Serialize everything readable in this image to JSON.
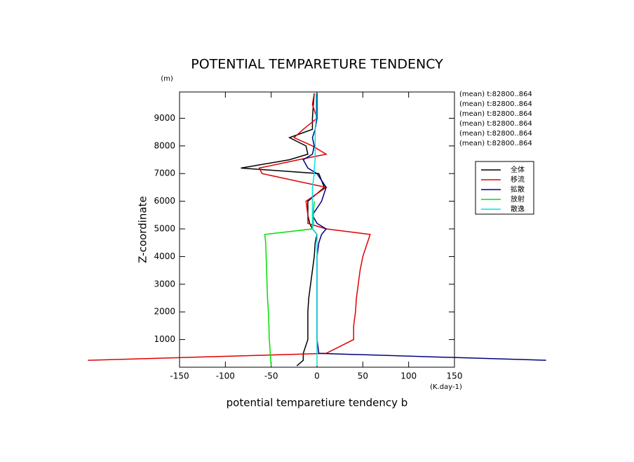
{
  "chart_data": {
    "type": "line",
    "title": "POTENTIAL TEMPARETURE TENDENCY",
    "x_label": "potential temparetiure tendency b",
    "x_unit": "(K.day-1)",
    "y_label": "Z-coordinate",
    "y_unit": "(m)",
    "xlim": [
      -150,
      150
    ],
    "xticks": [
      -150,
      -100,
      -50,
      0,
      50,
      100,
      150
    ],
    "ylim": [
      0,
      9950
    ],
    "yticks": [
      1000,
      2000,
      3000,
      4000,
      5000,
      6000,
      7000,
      8000,
      9000
    ],
    "y": [
      50,
      250,
      500,
      1000,
      1500,
      2000,
      2500,
      3000,
      3500,
      4000,
      4500,
      4800,
      5000,
      5200,
      5500,
      6000,
      6500,
      7000,
      7200,
      7500,
      7700,
      8000,
      8300,
      8600,
      9000,
      9500,
      9900
    ],
    "annotations": [
      "(mean) t:82800..864",
      "(mean) t:82800..864",
      "(mean) t:82800..864",
      "(mean) t:82800..864",
      "(mean) t:82800..864",
      "(mean) t:82800..864"
    ],
    "series": [
      {
        "name": "全体",
        "color": "#000000",
        "values": [
          -22,
          -15,
          -15,
          -10,
          -10,
          -10,
          -9,
          -7,
          -5,
          -3,
          -2,
          0,
          -5,
          -8,
          -10,
          -10,
          8,
          2,
          -83,
          -30,
          -10,
          -12,
          -30,
          -5,
          -5,
          -4,
          -3
        ]
      },
      {
        "name": "移流",
        "color": "#e00000",
        "values": [
          null,
          -250,
          10,
          40,
          40,
          42,
          43,
          45,
          47,
          50,
          55,
          58,
          10,
          -10,
          -10,
          -12,
          10,
          -60,
          -63,
          -20,
          10,
          -5,
          -25,
          -15,
          0,
          -5,
          -3
        ]
      },
      {
        "name": "拡散",
        "color": "#00007f",
        "values": [
          null,
          250,
          2,
          0,
          0,
          0,
          0,
          0,
          0,
          0,
          2,
          5,
          10,
          0,
          -5,
          5,
          10,
          0,
          -10,
          -15,
          -5,
          -3,
          -5,
          -2,
          0,
          0,
          0
        ]
      },
      {
        "name": "放射",
        "color": "#00e000",
        "values": [
          -50,
          -50.5,
          -51,
          -52,
          -52.5,
          -53,
          -54,
          -54.5,
          -55,
          -55.5,
          -56,
          -57,
          -5,
          -4,
          -4,
          -3,
          null,
          null,
          null,
          null,
          null,
          null,
          null,
          null,
          null,
          null,
          null
        ]
      },
      {
        "name": "散逸",
        "color": "#00e0e0",
        "values": [
          0,
          0,
          0,
          0,
          0,
          0,
          0,
          0,
          0,
          0,
          0,
          0,
          -5,
          -5,
          -5,
          -5,
          -5,
          -3,
          -3,
          -2,
          -2,
          -2,
          -2,
          -2,
          -1,
          -1,
          -1
        ]
      }
    ]
  }
}
